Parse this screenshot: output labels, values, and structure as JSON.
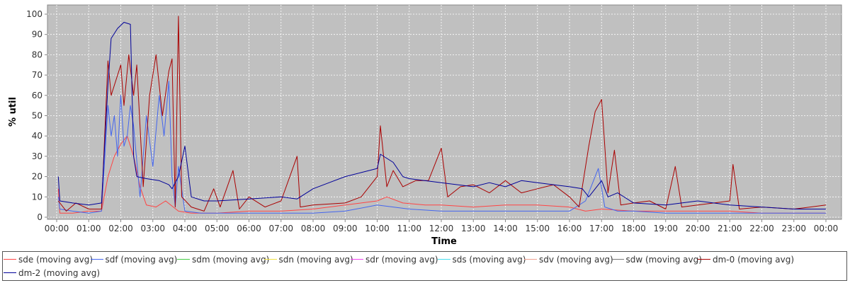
{
  "chart_data": {
    "type": "line",
    "xlabel": "Time",
    "ylabel": "% util",
    "ylim": [
      0,
      100
    ],
    "xlim": [
      0,
      24
    ],
    "y_ticks": [
      "0",
      "10",
      "20",
      "30",
      "40",
      "50",
      "60",
      "70",
      "80",
      "90",
      "100"
    ],
    "x_ticks": [
      "00:00",
      "01:00",
      "02:00",
      "03:00",
      "04:00",
      "05:00",
      "06:00",
      "07:00",
      "08:00",
      "09:00",
      "10:00",
      "11:00",
      "12:00",
      "13:00",
      "14:00",
      "15:00",
      "16:00",
      "17:00",
      "18:00",
      "19:00",
      "20:00",
      "21:00",
      "22:00",
      "23:00",
      "00:00"
    ],
    "grid": true,
    "background": "#c0c0c0",
    "legend_position": "bottom",
    "series": [
      {
        "name": "sde (moving avg)",
        "color": "#ff4444",
        "points": [
          [
            0.05,
            14
          ],
          [
            0.1,
            2
          ],
          [
            0.5,
            2
          ],
          [
            1,
            3
          ],
          [
            1.4,
            3
          ],
          [
            1.6,
            20
          ],
          [
            1.8,
            30
          ],
          [
            2,
            36
          ],
          [
            2.2,
            40
          ],
          [
            2.4,
            30
          ],
          [
            2.6,
            15
          ],
          [
            2.8,
            6
          ],
          [
            3.1,
            5
          ],
          [
            3.4,
            8
          ],
          [
            3.8,
            3
          ],
          [
            4.2,
            2
          ],
          [
            5,
            2
          ],
          [
            6,
            3
          ],
          [
            7,
            3
          ],
          [
            8,
            4
          ],
          [
            9,
            6
          ],
          [
            10,
            8
          ],
          [
            10.3,
            10
          ],
          [
            10.8,
            7
          ],
          [
            11.5,
            6
          ],
          [
            12,
            6
          ],
          [
            13,
            5
          ],
          [
            14,
            6
          ],
          [
            15,
            6
          ],
          [
            16,
            5
          ],
          [
            16.5,
            3
          ],
          [
            17,
            4
          ],
          [
            18,
            3
          ],
          [
            19,
            3
          ],
          [
            20,
            3
          ],
          [
            21,
            3
          ],
          [
            22,
            2
          ],
          [
            23,
            2
          ],
          [
            24,
            2
          ]
        ]
      },
      {
        "name": "sdf (moving avg)",
        "color": "#4466ee",
        "points": [
          [
            0.05,
            10
          ],
          [
            0.1,
            4
          ],
          [
            0.5,
            3
          ],
          [
            1,
            2
          ],
          [
            1.4,
            3
          ],
          [
            1.6,
            55
          ],
          [
            1.7,
            40
          ],
          [
            1.8,
            50
          ],
          [
            1.9,
            30
          ],
          [
            2,
            60
          ],
          [
            2.1,
            35
          ],
          [
            2.2,
            40
          ],
          [
            2.3,
            55
          ],
          [
            2.4,
            45
          ],
          [
            2.6,
            10
          ],
          [
            2.8,
            50
          ],
          [
            3,
            25
          ],
          [
            3.2,
            60
          ],
          [
            3.35,
            40
          ],
          [
            3.5,
            67
          ],
          [
            3.6,
            20
          ],
          [
            3.7,
            5
          ],
          [
            3.8,
            25
          ],
          [
            4,
            3
          ],
          [
            4.5,
            2
          ],
          [
            5,
            2
          ],
          [
            6,
            2
          ],
          [
            7,
            2
          ],
          [
            8,
            2
          ],
          [
            9,
            3
          ],
          [
            10,
            6
          ],
          [
            10.5,
            5
          ],
          [
            11,
            4
          ],
          [
            12,
            3
          ],
          [
            13,
            3
          ],
          [
            14,
            3
          ],
          [
            15,
            3
          ],
          [
            16,
            3
          ],
          [
            16.5,
            8
          ],
          [
            16.9,
            24
          ],
          [
            17.1,
            5
          ],
          [
            17.5,
            3
          ],
          [
            18,
            3
          ],
          [
            19,
            2
          ],
          [
            20,
            2
          ],
          [
            21,
            2
          ],
          [
            22,
            2
          ],
          [
            23,
            2
          ],
          [
            24,
            2
          ]
        ]
      },
      {
        "name": "sdm (moving avg)",
        "color": "#44cc44",
        "points": []
      },
      {
        "name": "sdn (moving avg)",
        "color": "#f0e040",
        "points": []
      },
      {
        "name": "sdr (moving avg)",
        "color": "#ee44ee",
        "points": []
      },
      {
        "name": "sds (moving avg)",
        "color": "#44ddee",
        "points": []
      },
      {
        "name": "sdv (moving avg)",
        "color": "#f0a090",
        "points": []
      },
      {
        "name": "sdw (moving avg)",
        "color": "#777777",
        "points": []
      },
      {
        "name": "dm-0 (moving avg)",
        "color": "#aa0000",
        "points": [
          [
            0.05,
            8
          ],
          [
            0.3,
            3
          ],
          [
            0.6,
            7
          ],
          [
            1,
            4
          ],
          [
            1.4,
            4
          ],
          [
            1.6,
            77
          ],
          [
            1.7,
            60
          ],
          [
            1.9,
            70
          ],
          [
            2,
            75
          ],
          [
            2.1,
            55
          ],
          [
            2.25,
            80
          ],
          [
            2.4,
            60
          ],
          [
            2.5,
            75
          ],
          [
            2.7,
            15
          ],
          [
            2.9,
            60
          ],
          [
            3.1,
            80
          ],
          [
            3.3,
            50
          ],
          [
            3.5,
            72
          ],
          [
            3.6,
            78
          ],
          [
            3.7,
            5
          ],
          [
            3.8,
            99
          ],
          [
            3.9,
            10
          ],
          [
            4.2,
            5
          ],
          [
            4.6,
            3
          ],
          [
            4.9,
            14
          ],
          [
            5.1,
            5
          ],
          [
            5.5,
            23
          ],
          [
            5.7,
            4
          ],
          [
            6,
            10
          ],
          [
            6.5,
            5
          ],
          [
            7,
            8
          ],
          [
            7.5,
            30
          ],
          [
            7.6,
            5
          ],
          [
            8,
            6
          ],
          [
            9,
            7
          ],
          [
            9.5,
            10
          ],
          [
            10,
            20
          ],
          [
            10.1,
            45
          ],
          [
            10.3,
            15
          ],
          [
            10.5,
            23
          ],
          [
            10.8,
            15
          ],
          [
            11.2,
            18
          ],
          [
            11.6,
            18
          ],
          [
            12,
            34
          ],
          [
            12.2,
            10
          ],
          [
            12.6,
            15
          ],
          [
            13,
            16
          ],
          [
            13.5,
            12
          ],
          [
            14,
            18
          ],
          [
            14.5,
            12
          ],
          [
            15,
            14
          ],
          [
            15.5,
            16
          ],
          [
            16,
            10
          ],
          [
            16.3,
            5
          ],
          [
            16.6,
            35
          ],
          [
            16.8,
            52
          ],
          [
            17,
            58
          ],
          [
            17.2,
            12
          ],
          [
            17.4,
            33
          ],
          [
            17.6,
            6
          ],
          [
            18,
            7
          ],
          [
            18.5,
            8
          ],
          [
            19,
            4
          ],
          [
            19.3,
            25
          ],
          [
            19.5,
            5
          ],
          [
            20,
            6
          ],
          [
            21,
            8
          ],
          [
            21.1,
            26
          ],
          [
            21.3,
            4
          ],
          [
            22,
            5
          ],
          [
            23,
            4
          ],
          [
            24,
            6
          ]
        ]
      },
      {
        "name": "dm-2 (moving avg)",
        "color": "#000099",
        "points": [
          [
            0.05,
            20
          ],
          [
            0.1,
            8
          ],
          [
            0.5,
            7
          ],
          [
            1,
            6
          ],
          [
            1.4,
            7
          ],
          [
            1.6,
            65
          ],
          [
            1.7,
            88
          ],
          [
            1.9,
            93
          ],
          [
            2.1,
            96
          ],
          [
            2.3,
            95
          ],
          [
            2.4,
            30
          ],
          [
            2.5,
            20
          ],
          [
            2.8,
            19
          ],
          [
            3.2,
            18
          ],
          [
            3.5,
            16
          ],
          [
            3.6,
            14
          ],
          [
            3.8,
            20
          ],
          [
            4,
            35
          ],
          [
            4.2,
            10
          ],
          [
            4.6,
            8
          ],
          [
            5,
            8
          ],
          [
            6,
            9
          ],
          [
            7,
            10
          ],
          [
            7.5,
            9
          ],
          [
            8,
            14
          ],
          [
            8.5,
            17
          ],
          [
            9,
            20
          ],
          [
            9.5,
            22
          ],
          [
            10,
            24
          ],
          [
            10.1,
            31
          ],
          [
            10.5,
            27
          ],
          [
            10.8,
            20
          ],
          [
            11,
            19
          ],
          [
            12,
            17
          ],
          [
            13,
            15
          ],
          [
            13.5,
            17
          ],
          [
            14,
            15
          ],
          [
            14.5,
            18
          ],
          [
            15,
            17
          ],
          [
            15.5,
            16
          ],
          [
            16,
            15
          ],
          [
            16.4,
            14
          ],
          [
            16.6,
            10
          ],
          [
            17,
            18
          ],
          [
            17.2,
            10
          ],
          [
            17.5,
            12
          ],
          [
            18,
            7
          ],
          [
            19,
            6
          ],
          [
            20,
            8
          ],
          [
            21,
            6
          ],
          [
            22,
            5
          ],
          [
            23,
            4
          ],
          [
            24,
            4
          ]
        ]
      }
    ]
  }
}
